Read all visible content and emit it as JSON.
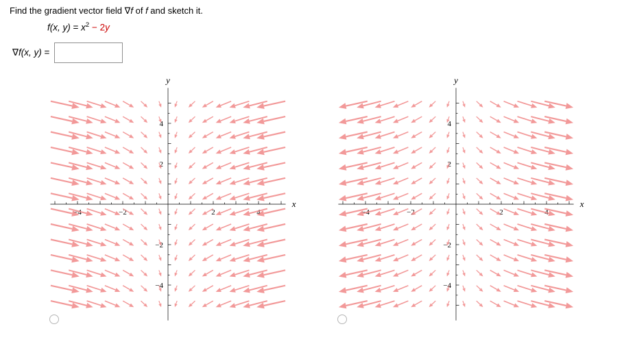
{
  "question": {
    "prompt_parts": {
      "p1": "Find the gradient vector field ",
      "nabla": "∇",
      "f1": "f",
      "p2": " of ",
      "f2": "f",
      "p3": " and sketch it."
    },
    "function": {
      "name": "f(x, y)",
      "equals": "=",
      "base": "x",
      "exponent": "2",
      "minus": "− ",
      "coefficient": "2",
      "variable": "y"
    }
  },
  "answer": {
    "nabla": "∇",
    "fn": "f(x, y)",
    "equals": "=",
    "value": ""
  },
  "options": [
    {
      "name": "option-1",
      "selected": false
    },
    {
      "name": "option-2",
      "selected": false
    }
  ],
  "colors": {
    "arrow": "#f08080",
    "axis": "#000000",
    "red_text": "#cc0000"
  },
  "chart_data": [
    {
      "type": "vector_field",
      "description": "Vector field sketch option 1: F(x, y) = (−2x, −2); arrows point toward the y-axis and slightly downward, growing with |x|",
      "field_fx": "-2x",
      "field_fy": "-2",
      "fx_coeff": -2,
      "fy_const": -2,
      "xlabel": "x",
      "ylabel": "y",
      "x_range": [
        -5,
        5
      ],
      "y_range": [
        -5,
        5
      ],
      "labeled_ticks": [
        -4,
        -2,
        2,
        4
      ],
      "minor_tick_step": 0.5,
      "grid_cols": 14,
      "grid_rows": 14,
      "arrow_color": "#f08080"
    },
    {
      "type": "vector_field",
      "description": "Vector field sketch option 2: F(x, y) = (2x, −2); arrows point away from the y-axis and slightly downward, growing with |x|",
      "field_fx": "2x",
      "field_fy": "-2",
      "fx_coeff": 2,
      "fy_const": -2,
      "xlabel": "x",
      "ylabel": "y",
      "x_range": [
        -5,
        5
      ],
      "y_range": [
        -5,
        5
      ],
      "labeled_ticks": [
        -4,
        -2,
        2,
        4
      ],
      "minor_tick_step": 0.5,
      "grid_cols": 14,
      "grid_rows": 14,
      "arrow_color": "#f08080"
    }
  ]
}
